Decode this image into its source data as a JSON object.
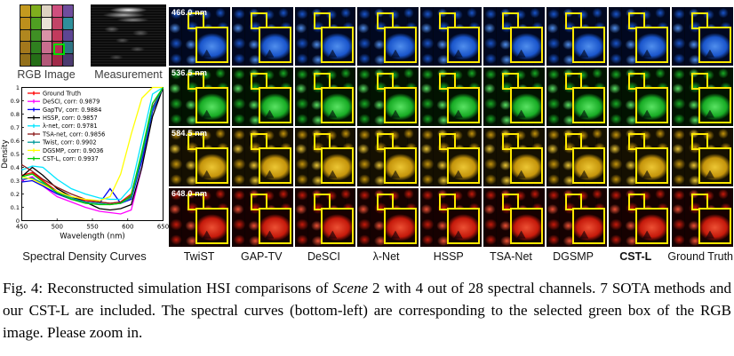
{
  "left_panel": {
    "rgb_label": "RGB Image",
    "measurement_label": "Measurement",
    "plot_caption": "Spectral Density Curves",
    "selection_box_color": "#00dd00",
    "rgb_palette": [
      "#c49a1f",
      "#7fae1e",
      "#ded3c2",
      "#cf4f7e",
      "#6f4d9d",
      "#bd8f1c",
      "#4f9f22",
      "#e9e2d6",
      "#c24467",
      "#2f8f9b",
      "#b0871f",
      "#3f8f24",
      "#d892a6",
      "#c23a5d",
      "#5d4693",
      "#a3781c",
      "#2f7f1f",
      "#c86e8e",
      "#b33153",
      "#2f7484",
      "#93701a",
      "#256e17",
      "#b25878",
      "#a12a49",
      "#4b3b70"
    ]
  },
  "chart_data": {
    "type": "line",
    "title": "Spectral Density Curves",
    "xlabel": "Wavelength (nm)",
    "ylabel": "Density",
    "xlim": [
      450,
      650
    ],
    "ylim": [
      0,
      1
    ],
    "x_ticks": [
      450,
      500,
      550,
      600,
      650
    ],
    "y_ticks": [
      0,
      0.1,
      0.2,
      0.3,
      0.4,
      0.5,
      0.6,
      0.7,
      0.8,
      0.9,
      1
    ],
    "grid": false,
    "legend_position": "upper-left",
    "x": [
      450,
      465,
      480,
      500,
      520,
      540,
      560,
      575,
      590,
      605,
      620,
      635,
      650
    ],
    "series": [
      {
        "label": "Ground Truth",
        "color": "#ff0000",
        "values": [
          0.34,
          0.36,
          0.3,
          0.22,
          0.18,
          0.15,
          0.14,
          0.13,
          0.14,
          0.2,
          0.5,
          0.85,
          1.0
        ]
      },
      {
        "label": "DeSCI, corr: 0.9879",
        "color": "#ff00ff",
        "values": [
          0.3,
          0.33,
          0.26,
          0.18,
          0.14,
          0.1,
          0.07,
          0.06,
          0.05,
          0.08,
          0.4,
          0.85,
          1.0
        ]
      },
      {
        "label": "GapTV, corr: 0.9884",
        "color": "#0000ee",
        "values": [
          0.29,
          0.3,
          0.26,
          0.2,
          0.16,
          0.14,
          0.13,
          0.24,
          0.13,
          0.16,
          0.45,
          0.82,
          1.0
        ]
      },
      {
        "label": "HSSP, corr: 0.9857",
        "color": "#000000",
        "values": [
          0.33,
          0.4,
          0.34,
          0.24,
          0.18,
          0.14,
          0.09,
          0.08,
          0.09,
          0.12,
          0.4,
          0.78,
          1.0
        ]
      },
      {
        "label": "λ-net, corr: 0.9781",
        "color": "#00e5ff",
        "values": [
          0.38,
          0.41,
          0.4,
          0.31,
          0.24,
          0.2,
          0.17,
          0.16,
          0.16,
          0.25,
          0.6,
          0.95,
          1.0
        ]
      },
      {
        "label": "TSA-net, corr: 0.9856",
        "color": "#8b1a1a",
        "values": [
          0.42,
          0.37,
          0.31,
          0.25,
          0.2,
          0.16,
          0.14,
          0.13,
          0.14,
          0.18,
          0.5,
          0.85,
          1.0
        ]
      },
      {
        "label": "Twist, corr: 0.9902",
        "color": "#009999",
        "values": [
          0.31,
          0.32,
          0.28,
          0.21,
          0.17,
          0.14,
          0.13,
          0.12,
          0.13,
          0.17,
          0.48,
          0.84,
          1.0
        ]
      },
      {
        "label": "DGSMP, corr: 0.9036",
        "color": "#ffff00",
        "values": [
          0.33,
          0.31,
          0.27,
          0.22,
          0.18,
          0.16,
          0.15,
          0.18,
          0.35,
          0.65,
          0.92,
          1.0,
          1.0
        ]
      },
      {
        "label": "CST-L, corr: 0.9937",
        "color": "#00cc00",
        "values": [
          0.33,
          0.35,
          0.29,
          0.21,
          0.16,
          0.13,
          0.12,
          0.12,
          0.13,
          0.19,
          0.52,
          0.88,
          1.0
        ]
      }
    ]
  },
  "grid": {
    "rows": [
      {
        "wavelength": "466.0 nm",
        "tint": "blue"
      },
      {
        "wavelength": "536.5 nm",
        "tint": "green"
      },
      {
        "wavelength": "584.5 nm",
        "tint": "yellow"
      },
      {
        "wavelength": "648.0 nm",
        "tint": "red"
      }
    ],
    "methods": [
      "TwiST",
      "GAP-TV",
      "DeSCI",
      "λ-Net",
      "HSSP",
      "TSA-Net",
      "DGSMP",
      "CST-L",
      "Ground Truth"
    ],
    "bold_method": "CST-L",
    "highlight_color": "#ffe800"
  },
  "caption": {
    "prefix": "Fig. 4: Reconstructed simulation HSI comparisons of ",
    "italic": "Scene",
    "suffix": " 2 with 4 out of 28 spectral channels. 7 SOTA methods and our CST-L are included. The spectral curves (bottom-left) are corresponding to the selected green box of the RGB image. Please zoom in."
  }
}
